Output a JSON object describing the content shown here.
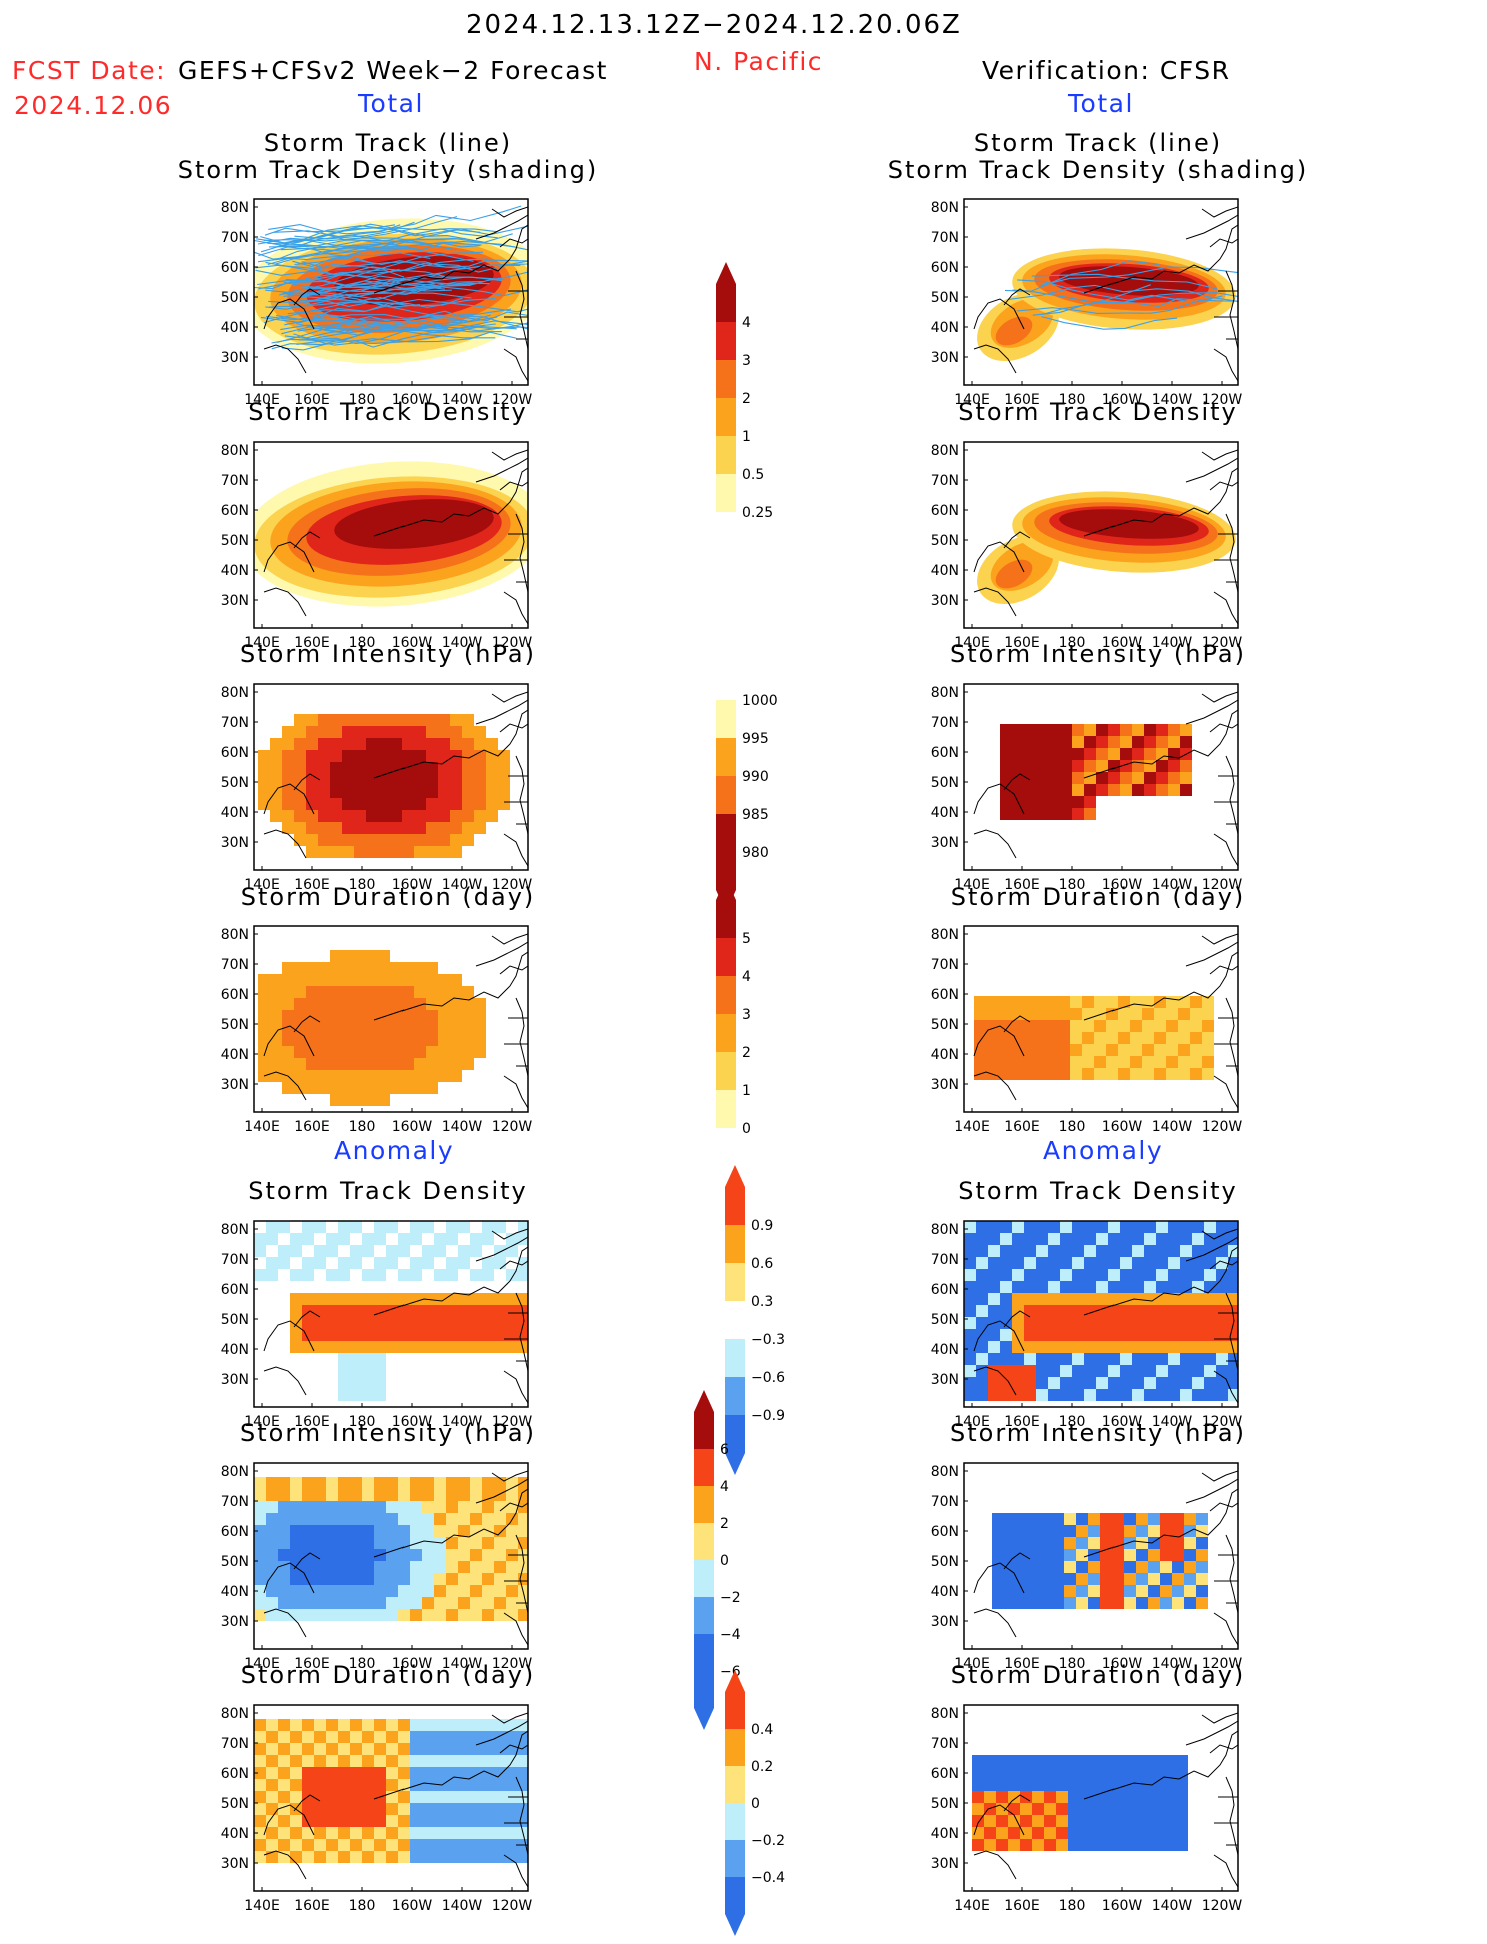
{
  "header": {
    "date_range": "2024.12.13.12Z−2024.12.20.06Z",
    "region": "N. Pacific",
    "fcst_label": "FCST Date:",
    "fcst_model": "GEFS+CFSv2 Week−2 Forecast",
    "fcst_date": "2024.12.06",
    "verif": "Verification: CFSR",
    "total_label": "Total",
    "anomaly_label": "Anomaly"
  },
  "titles": {
    "track_line": "Storm Track (line)",
    "track_shading": "Storm Track Density (shading)",
    "density": "Storm Track Density",
    "intensity": "Storm Intensity (hPa)",
    "duration": "Storm Duration (day)"
  },
  "axes": {
    "lon_ticks": [
      "140E",
      "160E",
      "180",
      "160W",
      "140W",
      "120W"
    ],
    "lat_ticks": [
      "80N",
      "70N",
      "60N",
      "50N",
      "40N",
      "30N"
    ]
  },
  "colorbars": {
    "density_total": [
      "4",
      "3",
      "2",
      "1",
      "0.5",
      "0.25"
    ],
    "intensity_total": [
      "1000",
      "995",
      "990",
      "985",
      "980"
    ],
    "duration_total": [
      "5",
      "4",
      "3",
      "2",
      "1",
      "0"
    ],
    "density_anom": [
      "0.9",
      "0.6",
      "0.3",
      "−0.3",
      "−0.6",
      "−0.9"
    ],
    "intensity_anom": [
      "6",
      "4",
      "2",
      "0",
      "−2",
      "−4",
      "−6"
    ],
    "duration_anom": [
      "0.4",
      "0.2",
      "0",
      "−0.2",
      "−0.4"
    ]
  },
  "colors": {
    "warm": [
      "#fff9ae",
      "#fcd34f",
      "#fca31e",
      "#f5721b",
      "#e0261a",
      "#a50c0c"
    ],
    "anom": [
      "#2f6fe6",
      "#5aa2f0",
      "#bdeefa",
      "#ffffff",
      "#fde37a",
      "#fca31e",
      "#f54418"
    ],
    "track_line": "#3aa0e8",
    "coast": "#000000"
  }
}
